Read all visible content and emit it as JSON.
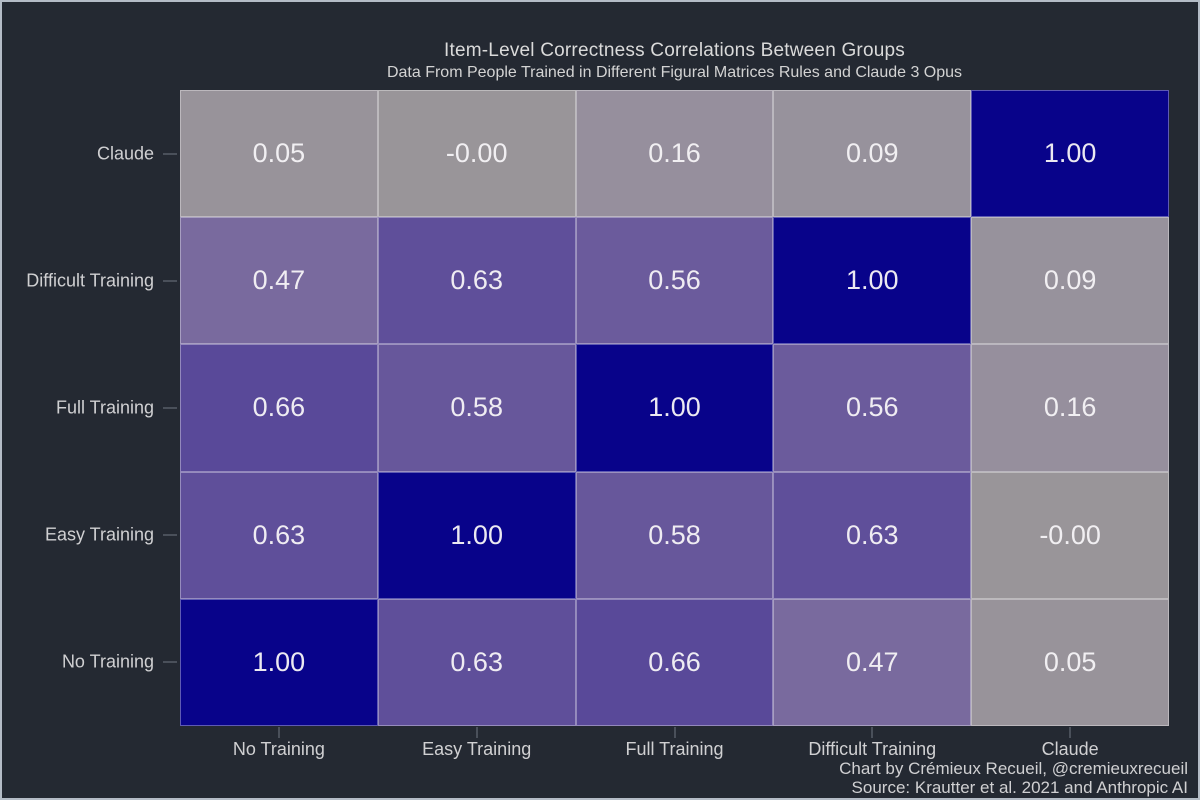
{
  "window": {
    "background_color": "#242932",
    "frame_border_color": "#b4bcc6"
  },
  "chart_data": {
    "type": "heatmap",
    "title": "Item-Level Correctness Correlations Between Groups",
    "subtitle": "Data From People Trained in Different Figural Matrices Rules and Claude 3 Opus",
    "x_categories": [
      "No Training",
      "Easy Training",
      "Full Training",
      "Difficult Training",
      "Claude"
    ],
    "y_categories_top_to_bottom": [
      "Claude",
      "Difficult Training",
      "Full Training",
      "Easy Training",
      "No Training"
    ],
    "rows": [
      {
        "label": "Claude",
        "values": [
          0.05,
          0.0,
          0.16,
          0.09,
          1.0
        ],
        "display": [
          "0.05",
          "-0.00",
          "0.16",
          "0.09",
          "1.00"
        ]
      },
      {
        "label": "Difficult Training",
        "values": [
          0.47,
          0.63,
          0.56,
          1.0,
          0.09
        ],
        "display": [
          "0.47",
          "0.63",
          "0.56",
          "1.00",
          "0.09"
        ]
      },
      {
        "label": "Full Training",
        "values": [
          0.66,
          0.58,
          1.0,
          0.56,
          0.16
        ],
        "display": [
          "0.66",
          "0.58",
          "1.00",
          "0.56",
          "0.16"
        ]
      },
      {
        "label": "Easy Training",
        "values": [
          0.63,
          1.0,
          0.58,
          0.63,
          0.0
        ],
        "display": [
          "0.63",
          "1.00",
          "0.58",
          "0.63",
          "-0.00"
        ]
      },
      {
        "label": "No Training",
        "values": [
          1.0,
          0.63,
          0.66,
          0.47,
          0.05
        ],
        "display": [
          "1.00",
          "0.63",
          "0.66",
          "0.47",
          "0.05"
        ]
      }
    ],
    "value_range": [
      0,
      1
    ],
    "color_scale": {
      "anchors": [
        [
          0.0,
          "#999599"
        ],
        [
          0.25,
          "#948CA0"
        ],
        [
          0.5,
          "#75659E"
        ],
        [
          0.75,
          "#4A3A96"
        ],
        [
          1.0,
          "#08038A"
        ]
      ]
    },
    "cell_value_text_color": "#F5F3F6",
    "cell_border_color": "rgba(255,255,255,0.35)",
    "legend": "none",
    "grid": "off"
  },
  "footer": {
    "credit": "Chart by Crémieux Recueil, @cremieuxrecueil",
    "source": "Source: Krautter et al. 2021 and Anthropic AI"
  }
}
